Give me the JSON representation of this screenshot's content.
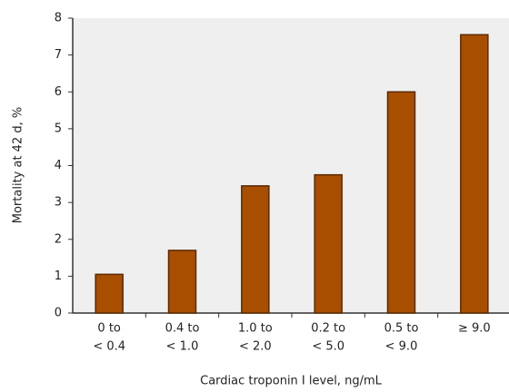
{
  "chart_data": {
    "type": "bar",
    "y_label": "Mortality at 42 d, %",
    "x_label": "Cardiac troponin I level, ng/mL",
    "categories": [
      [
        "0 to",
        "< 0.4"
      ],
      [
        "0.4 to",
        "< 1.0"
      ],
      [
        "1.0 to",
        "< 2.0"
      ],
      [
        "0.2 to",
        "< 5.0"
      ],
      [
        "0.5 to",
        "< 9.0"
      ],
      [
        "≥ 9.0"
      ]
    ],
    "values": [
      1.05,
      1.7,
      3.45,
      3.75,
      6.0,
      7.55
    ],
    "color": "#a84e00",
    "ylim": [
      0,
      8
    ],
    "yticks": [
      0,
      1,
      2,
      3,
      4,
      5,
      6,
      7,
      8
    ],
    "grid": false
  }
}
